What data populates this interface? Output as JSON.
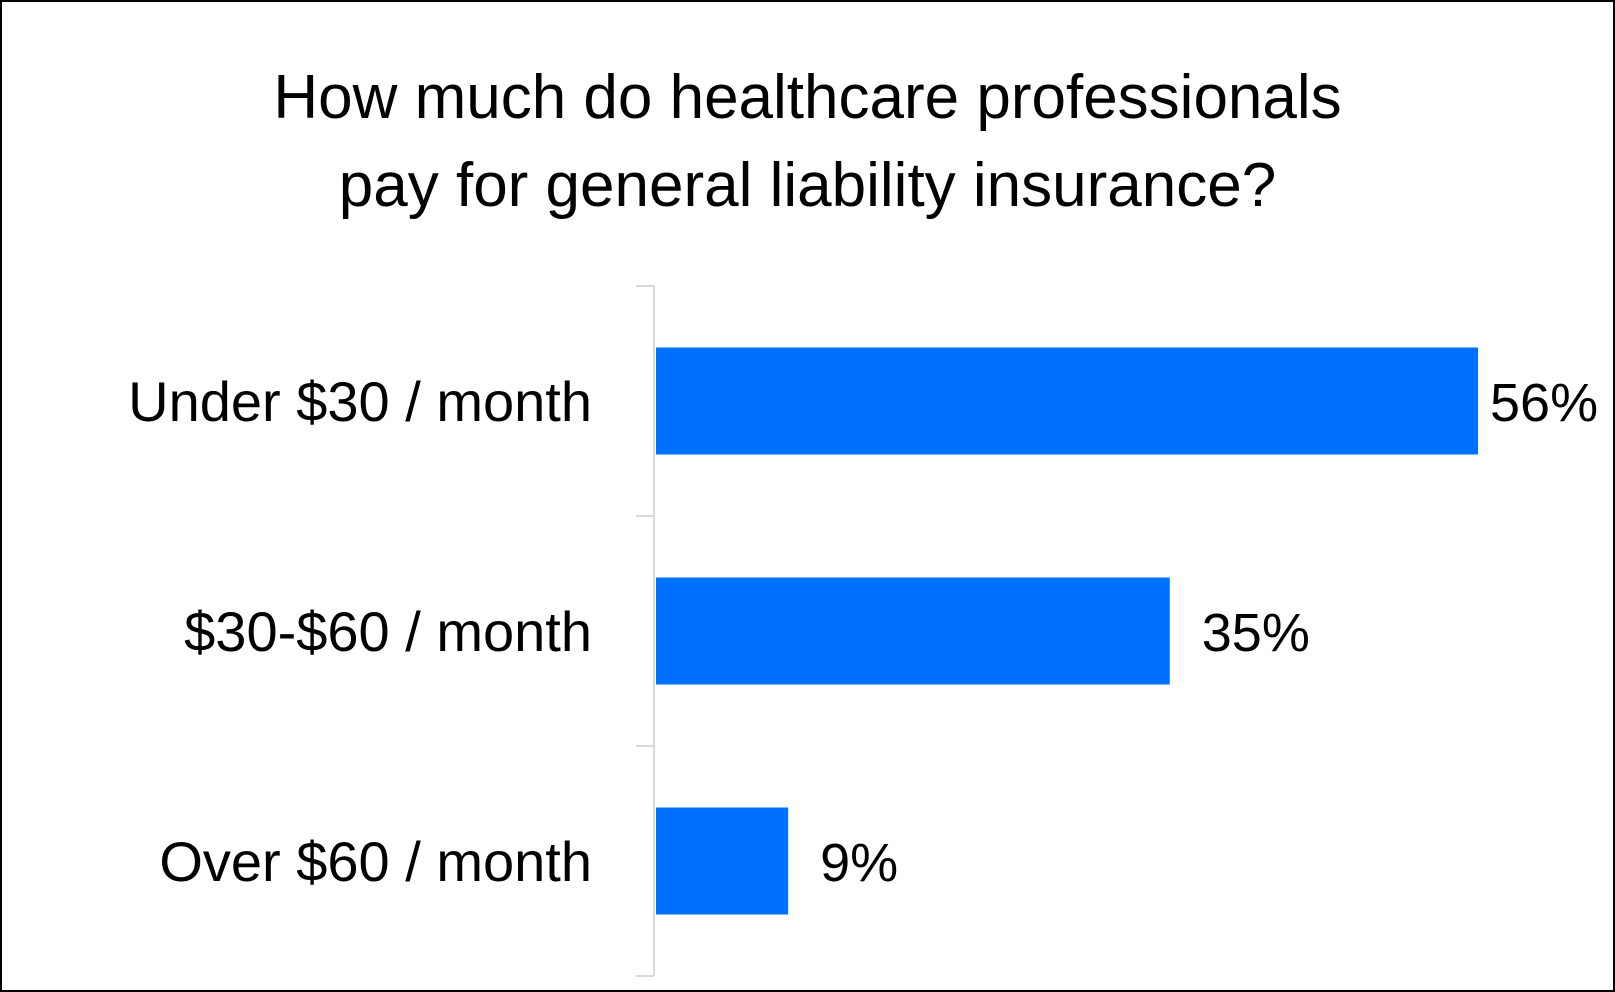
{
  "chart_data": {
    "type": "bar",
    "orientation": "horizontal",
    "title_lines": [
      "How much do healthcare professionals",
      "pay for general liability insurance?"
    ],
    "categories": [
      "Under $30 / month",
      "$30-$60 / month",
      "Over $60 / month"
    ],
    "values": [
      56,
      35,
      9
    ],
    "value_labels": [
      "56%",
      "35%",
      "9%"
    ],
    "unit": "%",
    "xlim": [
      0,
      56
    ],
    "bar_color": "#0070FF",
    "axis_color": "#D9D9D9",
    "grid": false,
    "legend": "none"
  }
}
